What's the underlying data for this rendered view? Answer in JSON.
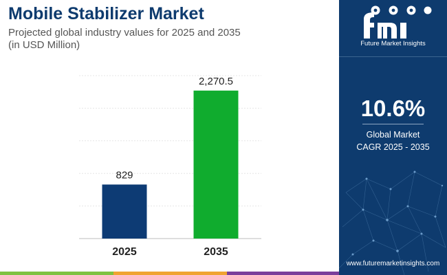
{
  "header": {
    "title": "Mobile Stabilizer Market",
    "subtitle_line1": "Projected global industry values for 2025 and 2035",
    "subtitle_line2": "(in USD Million)"
  },
  "chart_data": {
    "type": "bar",
    "categories": [
      "2025",
      "2035"
    ],
    "values": [
      829,
      2270.5
    ],
    "value_labels": [
      "829",
      "2,270.5"
    ],
    "colors": [
      "#0d3b74",
      "#10ac2e"
    ],
    "ylim": [
      0,
      2500
    ],
    "grid": true,
    "xlabel": "",
    "ylabel": ""
  },
  "sidebar": {
    "brand_name": "Future Market Insights",
    "cagr_value": "10.6%",
    "cagr_label_line1": "Global Market",
    "cagr_label_line2": "CAGR 2025 - 2035",
    "website": "www.futuremarketinsights.com"
  },
  "colors": {
    "navy": "#0e3b6e",
    "strip": [
      "#7fc241",
      "#f0a431",
      "#7a3f9b"
    ]
  }
}
